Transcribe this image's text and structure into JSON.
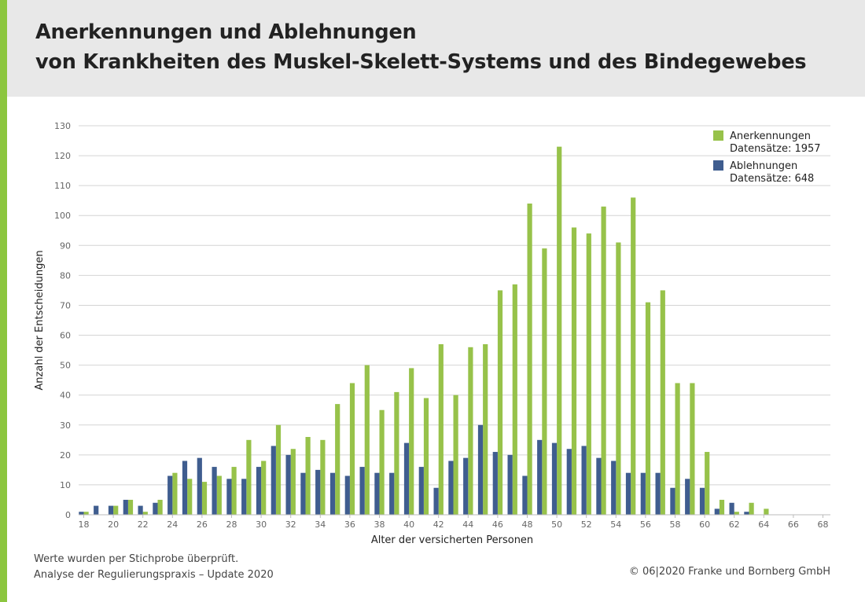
{
  "header": {
    "title_line1": "Anerkennungen und Ablehnungen",
    "title_line2": "von Krankheiten des Muskel-Skelett-Systems und des Bindegewebes"
  },
  "footer": {
    "note_line1": "Werte wurden per Stichprobe überprüft.",
    "note_line2": "Analyse der Regulierungspraxis – Update 2020",
    "copyright": "© 06|2020 Franke und Bornberg GmbH"
  },
  "colors": {
    "accent": "#8cc63f",
    "anerkennungen": "#97c24a",
    "ablehnungen": "#3f5d8f",
    "grid": "#d4d4d4",
    "header_bg": "#e8e8e8"
  },
  "chart_data": {
    "type": "bar",
    "xlabel": "Alter der versicherten Personen",
    "ylabel": "Anzahl der Entscheidungen",
    "ylim": [
      0,
      130
    ],
    "yticks": [
      0,
      10,
      20,
      30,
      40,
      50,
      60,
      70,
      80,
      90,
      100,
      110,
      120,
      130
    ],
    "xticks": [
      18,
      20,
      22,
      24,
      26,
      28,
      30,
      32,
      34,
      36,
      38,
      40,
      42,
      44,
      46,
      48,
      50,
      52,
      54,
      56,
      58,
      60,
      62,
      64,
      66,
      68
    ],
    "x": [
      18,
      19,
      20,
      21,
      22,
      23,
      24,
      25,
      26,
      27,
      28,
      29,
      30,
      31,
      32,
      33,
      34,
      35,
      36,
      37,
      38,
      39,
      40,
      41,
      42,
      43,
      44,
      45,
      46,
      47,
      48,
      49,
      50,
      51,
      52,
      53,
      54,
      55,
      56,
      57,
      58,
      59,
      60,
      61,
      62,
      63,
      64,
      65,
      66,
      67,
      68
    ],
    "grid": true,
    "legend_position": "top-right",
    "series": [
      {
        "name": "Anerkennungen",
        "subtitle": "Datensätze: 1957",
        "values": [
          1,
          0,
          3,
          5,
          1,
          5,
          14,
          12,
          11,
          13,
          16,
          25,
          18,
          30,
          22,
          26,
          25,
          37,
          44,
          50,
          35,
          41,
          49,
          39,
          57,
          40,
          56,
          57,
          75,
          77,
          104,
          89,
          123,
          96,
          94,
          103,
          91,
          106,
          71,
          75,
          44,
          44,
          21,
          5,
          1,
          4,
          2,
          0,
          0,
          0,
          0
        ]
      },
      {
        "name": "Ablehnungen",
        "subtitle": "Datensätze: 648",
        "values": [
          1,
          3,
          3,
          5,
          3,
          4,
          13,
          18,
          19,
          16,
          12,
          12,
          16,
          23,
          20,
          14,
          15,
          14,
          13,
          16,
          14,
          14,
          24,
          16,
          9,
          18,
          19,
          30,
          21,
          20,
          13,
          25,
          24,
          22,
          23,
          19,
          18,
          14,
          14,
          14,
          9,
          12,
          9,
          2,
          4,
          1,
          0,
          0,
          0,
          0,
          0
        ]
      }
    ]
  }
}
